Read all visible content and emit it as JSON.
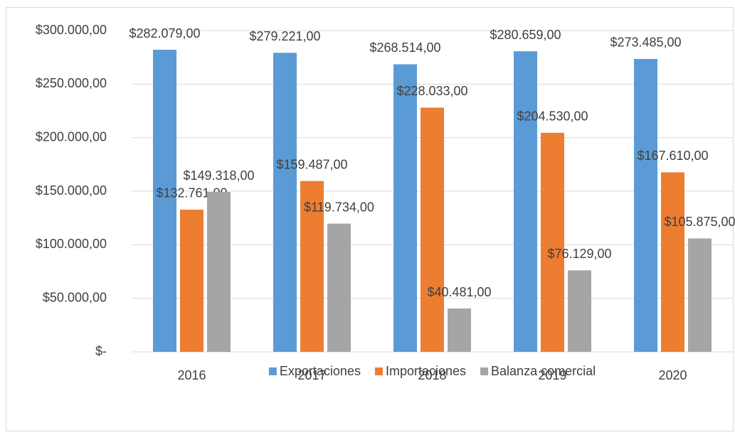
{
  "chart_data": {
    "type": "bar",
    "categories": [
      "2016",
      "2017",
      "2018",
      "2019",
      "2020"
    ],
    "series": [
      {
        "name": "Exportaciones",
        "color": "#5b9bd5",
        "values": [
          282079,
          279221,
          268514,
          280659,
          273485
        ],
        "value_labels": [
          "$282.079,00",
          "$279.221,00",
          "$268.514,00",
          "$280.659,00",
          "$273.485,00"
        ]
      },
      {
        "name": "Importaciones",
        "color": "#ed7d31",
        "values": [
          132761,
          159487,
          228033,
          204530,
          167610
        ],
        "value_labels": [
          "$132.761,00",
          "$159.487,00",
          "$228.033,00",
          "$204.530,00",
          "$167.610,00"
        ]
      },
      {
        "name": "Balanza comercial",
        "color": "#a5a5a5",
        "values": [
          149318,
          119734,
          40481,
          76129,
          105875
        ],
        "value_labels": [
          "$149.318,00",
          "$119.734,00",
          "$40.481,00",
          "$76.129,00",
          "$105.875,00"
        ]
      }
    ],
    "ylim": [
      0,
      300000
    ],
    "yticks": [
      {
        "value": 0,
        "label": "$-"
      },
      {
        "value": 50000,
        "label": "$50.000,00"
      },
      {
        "value": 100000,
        "label": "$100.000,00"
      },
      {
        "value": 150000,
        "label": "$150.000,00"
      },
      {
        "value": 200000,
        "label": "$200.000,00"
      },
      {
        "value": 250000,
        "label": "$250.000,00"
      },
      {
        "value": 300000,
        "label": "$300.000,00"
      }
    ],
    "grid": true,
    "legend": "bottom"
  }
}
